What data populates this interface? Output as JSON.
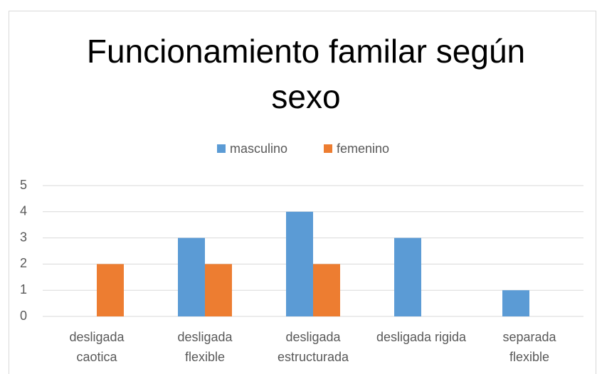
{
  "chart_data": {
    "type": "bar",
    "title": "Funcionamiento familar según sexo",
    "categories": [
      "desligada\ncaotica",
      "desligada\nflexible",
      "desligada\nestructurada",
      "desligada rigida",
      "separada\nflexible"
    ],
    "series": [
      {
        "name": "masculino",
        "color": "#5b9bd5",
        "values": [
          0,
          3,
          4,
          3,
          1
        ]
      },
      {
        "name": "femenino",
        "color": "#ed7d31",
        "values": [
          2,
          2,
          2,
          0,
          0
        ]
      }
    ],
    "ylim": [
      0,
      5
    ],
    "yticks": [
      0,
      1,
      2,
      3,
      4,
      5
    ],
    "grid": true,
    "legend": "top"
  }
}
